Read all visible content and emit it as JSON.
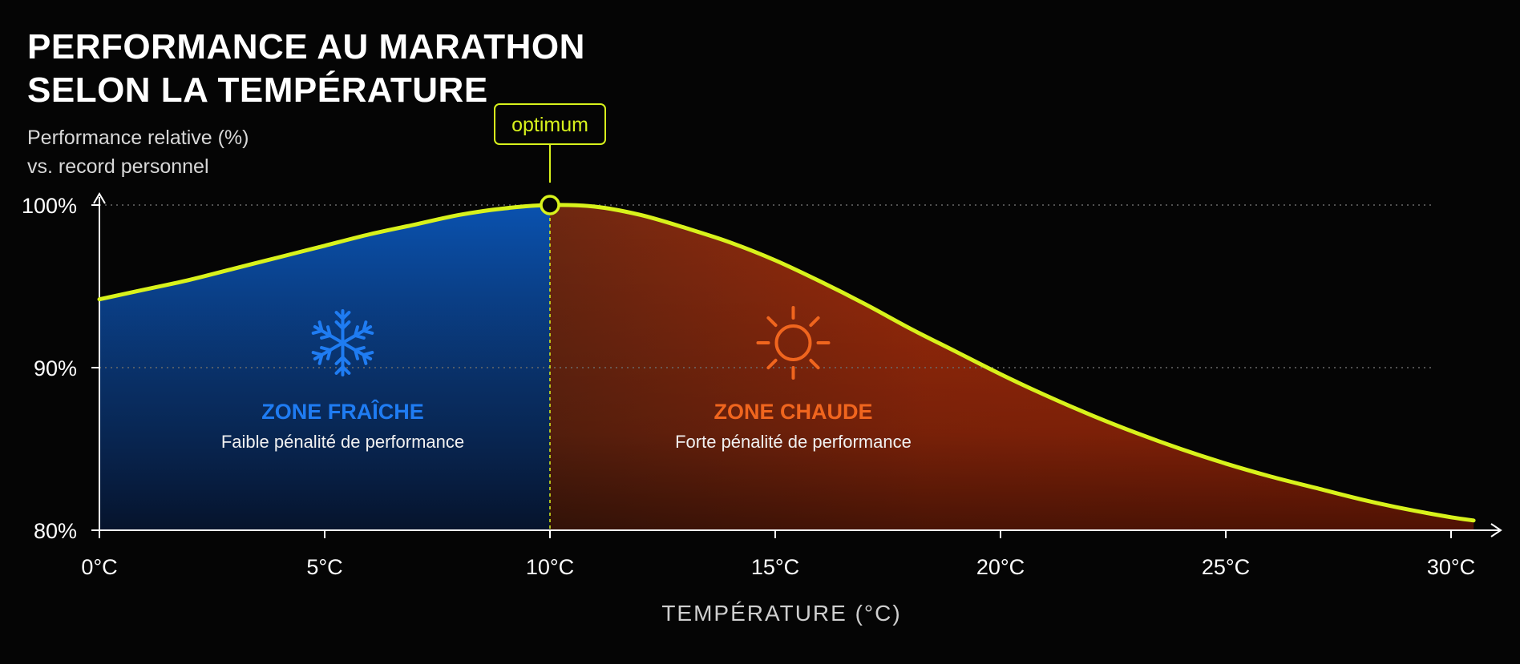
{
  "colors": {
    "background": "#050505",
    "curve": "#d8f21c",
    "cold_zone": "#1f7cf2",
    "hot_zone": "#f0651e",
    "axis": "#ffffff",
    "grid": "#6a6a6a"
  },
  "icons": {
    "cold": "snowflake-icon",
    "hot": "sun-icon"
  },
  "chart_data": {
    "type": "area",
    "title": "PERFORMANCE AU MARATHON SELON LA TEMPÉRATURE",
    "title_lines": [
      "PERFORMANCE AU MARATHON",
      "SELON LA TEMPÉRATURE"
    ],
    "ylabel": "Performance relative (%) vs. record personnel",
    "ylabel_lines": [
      "Performance relative (%)",
      "vs. record personnel"
    ],
    "xlabel": "TEMPÉRATURE (°C)",
    "xlim": [
      0,
      30
    ],
    "ylim": [
      80,
      100
    ],
    "x_ticks": [
      0,
      5,
      10,
      15,
      20,
      25,
      30
    ],
    "x_tick_labels": [
      "0°C",
      "5°C",
      "10°C",
      "15°C",
      "20°C",
      "25°C",
      "30°C"
    ],
    "y_ticks": [
      80,
      90,
      100
    ],
    "y_tick_labels": [
      "80%",
      "90%",
      "100%"
    ],
    "grid": "horizontal dotted at 90% and 100%",
    "series": [
      {
        "x": [
          0,
          1,
          2,
          3,
          4,
          5,
          6,
          7,
          8,
          9,
          10,
          11,
          12,
          13,
          14,
          15,
          16,
          17,
          18,
          19,
          20,
          21,
          22,
          23,
          24,
          25,
          26,
          27,
          28,
          29,
          30,
          30.5
        ],
        "y": [
          94.2,
          94.8,
          95.4,
          96.1,
          96.8,
          97.5,
          98.2,
          98.8,
          99.4,
          99.8,
          100.0,
          99.9,
          99.4,
          98.6,
          97.7,
          96.6,
          95.3,
          93.9,
          92.4,
          91.0,
          89.6,
          88.3,
          87.1,
          86.0,
          85.0,
          84.1,
          83.3,
          82.6,
          81.9,
          81.3,
          80.8,
          80.6
        ]
      }
    ],
    "annotations": {
      "optimum": {
        "label": "optimum",
        "x": 10,
        "y": 100
      },
      "cold_zone": {
        "title": "ZONE FRAÎCHE",
        "subtitle": "Faible pénalité de performance",
        "x": 5.4,
        "y": 91
      },
      "hot_zone": {
        "title": "ZONE CHAUDE",
        "subtitle": "Forte pénalité de performance",
        "x": 15.4,
        "y": 91
      }
    }
  }
}
